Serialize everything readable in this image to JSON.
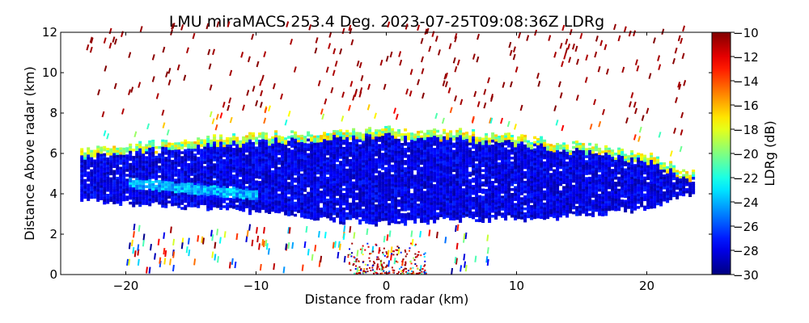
{
  "chart_data": {
    "type": "heatmap",
    "title": "LMU miraMACS 253.4 Deg. 2023-07-25T09:08:36Z  LDRg",
    "xlabel": "Distance from radar (km)",
    "ylabel": "Distance Above radar  (km)",
    "xlim": [
      -25,
      25
    ],
    "ylim": [
      0,
      12
    ],
    "xticks": [
      -20,
      -10,
      0,
      10,
      20
    ],
    "xtick_labels": [
      "−20",
      "−10",
      "0",
      "10",
      "20"
    ],
    "yticks": [
      0,
      2,
      4,
      6,
      8,
      10,
      12
    ],
    "ytick_labels": [
      "0",
      "2",
      "4",
      "6",
      "8",
      "10",
      "12"
    ],
    "grid": false,
    "colormap": "jet",
    "colorbar": {
      "label": "LDRg (dB)",
      "range": [
        -30,
        -10
      ],
      "ticks": [
        -10,
        -12,
        -14,
        -16,
        -18,
        -20,
        -22,
        -24,
        -26,
        -28,
        -30
      ],
      "tick_labels": [
        "−10",
        "−12",
        "−14",
        "−16",
        "−18",
        "−20",
        "−22",
        "−24",
        "−26",
        "−28",
        "−30"
      ],
      "placement": "right"
    },
    "features": {
      "main_layer": {
        "x_km": [
          -23.5,
          -20,
          -15,
          -10,
          -5,
          0,
          5,
          10,
          15,
          20,
          23.5
        ],
        "top_km": [
          6.2,
          6.4,
          6.7,
          6.9,
          7.1,
          7.2,
          7.1,
          6.8,
          6.4,
          5.9,
          5.0
        ],
        "base_km": [
          3.8,
          3.6,
          3.4,
          3.2,
          2.8,
          2.6,
          2.8,
          2.8,
          3.0,
          3.3,
          4.2
        ],
        "typical_value_db": -28.5
      },
      "enhanced_band": {
        "x_km": [
          -20,
          -10
        ],
        "height_km": [
          4.6,
          4.0
        ],
        "typical_value_db": -24
      },
      "layer_top_fringe_value_db": [
        -22,
        -16
      ],
      "sparse_streaks_value_db": -10,
      "near_ground_clutter_x_km": [
        -3,
        3
      ],
      "near_ground_clutter_height_km": [
        0,
        1.5
      ]
    }
  }
}
